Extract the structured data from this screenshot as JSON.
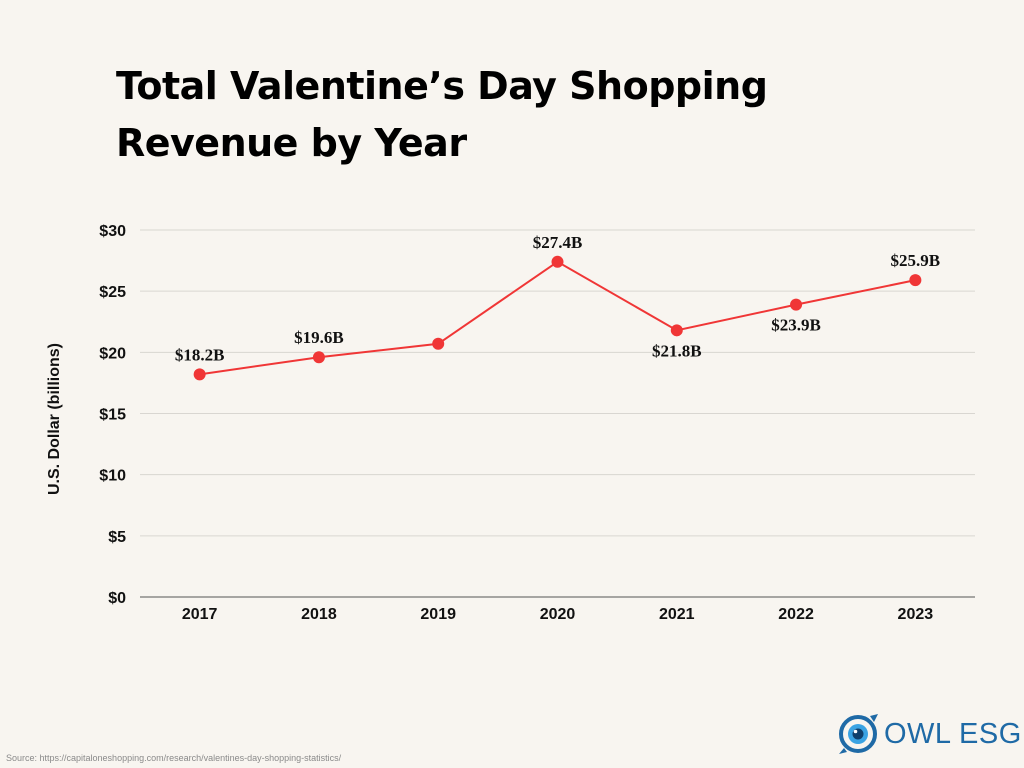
{
  "title_line1": "Total Valentine’s Day Shopping",
  "title_line2": "Revenue by Year",
  "source": "Source: https://capitaloneshopping.com/research/valentines-day-shopping-statistics/",
  "brand": {
    "name": "OWL ESG",
    "color": "#1f6aa6",
    "icon": "owl-eye-icon"
  },
  "chart_data": {
    "type": "line",
    "title": "Total Valentine’s Day Shopping Revenue by Year",
    "xlabel": "",
    "ylabel": "U.S. Dollar (billions)",
    "categories": [
      "2017",
      "2018",
      "2019",
      "2020",
      "2021",
      "2022",
      "2023"
    ],
    "series": [
      {
        "values": [
          18.2,
          19.6,
          20.7,
          27.4,
          21.8,
          23.9,
          25.9
        ],
        "color": "#f03636"
      }
    ],
    "data_labels": [
      "$18.2B",
      "$19.6B",
      "",
      "$27.4B",
      "$21.8B",
      "$23.9B",
      "$25.9B"
    ],
    "label_position": [
      "above",
      "above",
      "none",
      "above",
      "below",
      "below",
      "above"
    ],
    "y_ticks": [
      0,
      5,
      10,
      15,
      20,
      25,
      30
    ],
    "y_tick_labels": [
      "$0",
      "$5",
      "$10",
      "$15",
      "$20",
      "$25",
      "$30"
    ],
    "ylim": [
      0,
      30
    ],
    "grid": true,
    "legend": "none"
  }
}
